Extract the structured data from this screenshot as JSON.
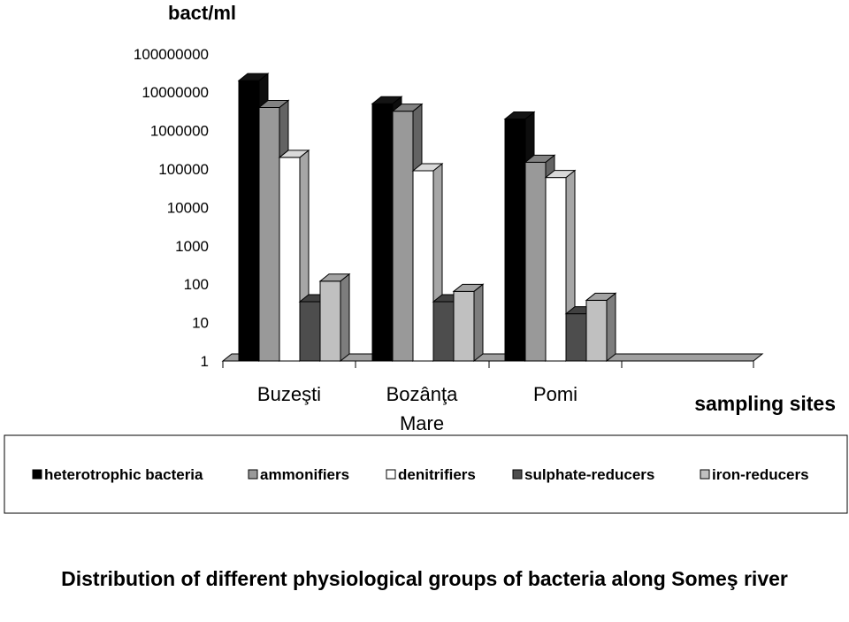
{
  "chart_data": {
    "type": "bar",
    "style": "3d",
    "log_scale": true,
    "ylabel": "bact/ml",
    "xlabel": "sampling sites",
    "ylim": [
      1,
      100000000
    ],
    "yticks": [
      "1",
      "10",
      "100",
      "1000",
      "10000",
      "100000",
      "1000000",
      "10000000",
      "100000000"
    ],
    "categories": [
      {
        "line1": "Buzeşti",
        "line2": ""
      },
      {
        "line1": "Bozânţa",
        "line2": "Mare"
      },
      {
        "line1": "Pomi",
        "line2": ""
      }
    ],
    "series": [
      {
        "name": "heterotrophic bacteria",
        "color": "#000000",
        "values": [
          20000000,
          5000000,
          2000000
        ]
      },
      {
        "name": "ammonifiers",
        "color": "#999999",
        "values": [
          4000000,
          3200000,
          150000
        ]
      },
      {
        "name": "denitrifiers",
        "color": "#ffffff",
        "values": [
          200000,
          90000,
          60000
        ]
      },
      {
        "name": "sulphate-reducers",
        "color": "#4d4d4d",
        "values": [
          35,
          35,
          17
        ]
      },
      {
        "name": "iron-reducers",
        "color": "#c0c0c0",
        "values": [
          120,
          65,
          38
        ]
      }
    ],
    "legend_position": "bottom",
    "grid": false
  },
  "caption": "Distribution of different physiological groups of bacteria along Someş river"
}
